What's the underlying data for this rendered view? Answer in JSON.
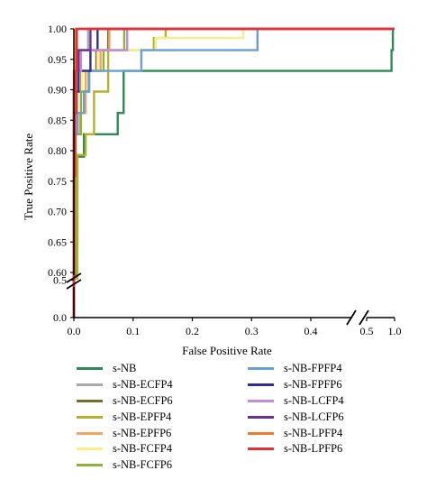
{
  "chart_data": {
    "type": "line",
    "xlabel": "False Positive Rate",
    "ylabel": "True Positive Rate",
    "xlim": [
      0,
      1.0
    ],
    "ylim": [
      0,
      1.0
    ],
    "x_axis_break": [
      0.47,
      0.5
    ],
    "y_axis_break": [
      0.0,
      0.6
    ],
    "x_ticks": [
      "0.0",
      "0.1",
      "0.2",
      "0.3",
      "0.4",
      "0.5",
      "1.0"
    ],
    "y_ticks": [
      "0.0",
      "0.5",
      "0.60",
      "0.65",
      "0.70",
      "0.75",
      "0.80",
      "0.85",
      "0.90",
      "0.95",
      "1.00"
    ],
    "grid": false,
    "legend_placement": "below, two columns",
    "series": [
      {
        "name": "s-NB",
        "color": "#2e8b57",
        "points": [
          [
            0,
            0
          ],
          [
            0,
            0.52
          ],
          [
            0.002,
            0.52
          ],
          [
            0.002,
            0.65
          ],
          [
            0.006,
            0.65
          ],
          [
            0.006,
            0.79
          ],
          [
            0.017,
            0.79
          ],
          [
            0.017,
            0.827
          ],
          [
            0.074,
            0.827
          ],
          [
            0.074,
            0.862
          ],
          [
            0.084,
            0.862
          ],
          [
            0.084,
            0.931
          ],
          [
            0.469,
            0.931
          ],
          [
            0.5,
            0.931
          ],
          [
            0.945,
            0.931
          ],
          [
            0.945,
            0.965
          ],
          [
            0.97,
            0.965
          ],
          [
            0.97,
            1.0
          ],
          [
            1.0,
            1.0
          ]
        ]
      },
      {
        "name": "s-NB-ECFP4",
        "color": "#a9a9a9",
        "points": [
          [
            0,
            0
          ],
          [
            0,
            0.897
          ],
          [
            0.003,
            0.897
          ],
          [
            0.003,
            0.931
          ],
          [
            0.008,
            0.931
          ],
          [
            0.008,
            0.965
          ],
          [
            0.024,
            0.965
          ],
          [
            0.024,
            1.0
          ],
          [
            1.0,
            1.0
          ]
        ]
      },
      {
        "name": "s-NB-ECFP6",
        "color": "#7a6a2c",
        "points": [
          [
            0,
            0
          ],
          [
            0,
            0.862
          ],
          [
            0.005,
            0.862
          ],
          [
            0.005,
            0.897
          ],
          [
            0.013,
            0.897
          ],
          [
            0.013,
            0.931
          ],
          [
            0.038,
            0.931
          ],
          [
            0.038,
            0.965
          ],
          [
            0.058,
            0.965
          ],
          [
            0.058,
            1.0
          ],
          [
            1.0,
            1.0
          ]
        ]
      },
      {
        "name": "s-NB-EPFP4",
        "color": "#b5b02e",
        "points": [
          [
            0,
            0
          ],
          [
            0,
            0.52
          ],
          [
            0.006,
            0.52
          ],
          [
            0.006,
            0.793
          ],
          [
            0.02,
            0.793
          ],
          [
            0.02,
            0.827
          ],
          [
            0.034,
            0.827
          ],
          [
            0.034,
            0.897
          ],
          [
            0.058,
            0.897
          ],
          [
            0.058,
            0.965
          ],
          [
            0.135,
            0.965
          ],
          [
            0.135,
            0.985
          ],
          [
            0.155,
            0.985
          ],
          [
            0.155,
            1.0
          ],
          [
            1.0,
            1.0
          ]
        ]
      },
      {
        "name": "s-NB-EPFP6",
        "color": "#f4a460",
        "points": [
          [
            0,
            0
          ],
          [
            0,
            0.7
          ],
          [
            0.003,
            0.7
          ],
          [
            0.003,
            0.827
          ],
          [
            0.01,
            0.827
          ],
          [
            0.01,
            0.862
          ],
          [
            0.02,
            0.862
          ],
          [
            0.02,
            0.931
          ],
          [
            0.045,
            0.931
          ],
          [
            0.045,
            0.965
          ],
          [
            0.06,
            0.965
          ],
          [
            0.06,
            1.0
          ],
          [
            1.0,
            1.0
          ]
        ]
      },
      {
        "name": "s-NB-FCFP4",
        "color": "#f5f08c",
        "points": [
          [
            0,
            0
          ],
          [
            0,
            0.862
          ],
          [
            0.004,
            0.862
          ],
          [
            0.004,
            0.897
          ],
          [
            0.014,
            0.897
          ],
          [
            0.014,
            0.931
          ],
          [
            0.04,
            0.931
          ],
          [
            0.04,
            0.965
          ],
          [
            0.138,
            0.965
          ],
          [
            0.138,
            0.985
          ],
          [
            0.286,
            0.985
          ],
          [
            0.286,
            1.0
          ],
          [
            1.0,
            1.0
          ]
        ]
      },
      {
        "name": "s-NB-FCFP6",
        "color": "#8db13a",
        "points": [
          [
            0,
            0
          ],
          [
            0,
            0.6
          ],
          [
            0.003,
            0.6
          ],
          [
            0.003,
            0.827
          ],
          [
            0.012,
            0.827
          ],
          [
            0.012,
            0.897
          ],
          [
            0.025,
            0.897
          ],
          [
            0.025,
            0.931
          ],
          [
            0.05,
            0.931
          ],
          [
            0.05,
            0.965
          ],
          [
            0.085,
            0.965
          ],
          [
            0.085,
            1.0
          ],
          [
            1.0,
            1.0
          ]
        ]
      },
      {
        "name": "s-NB-FPFP4",
        "color": "#6a9fd4",
        "points": [
          [
            0,
            0
          ],
          [
            0,
            0.827
          ],
          [
            0.006,
            0.827
          ],
          [
            0.006,
            0.862
          ],
          [
            0.017,
            0.862
          ],
          [
            0.017,
            0.897
          ],
          [
            0.026,
            0.897
          ],
          [
            0.026,
            0.931
          ],
          [
            0.114,
            0.931
          ],
          [
            0.114,
            0.965
          ],
          [
            0.31,
            0.965
          ],
          [
            0.31,
            1.0
          ],
          [
            1.0,
            1.0
          ]
        ]
      },
      {
        "name": "s-NB-FPFP6",
        "color": "#2f2f8f",
        "points": [
          [
            0,
            0
          ],
          [
            0,
            0.897
          ],
          [
            0.008,
            0.897
          ],
          [
            0.008,
            0.931
          ],
          [
            0.028,
            0.931
          ],
          [
            0.028,
            0.965
          ],
          [
            0.04,
            0.965
          ],
          [
            0.04,
            1.0
          ],
          [
            1.0,
            1.0
          ]
        ]
      },
      {
        "name": "s-NB-LCFP4",
        "color": "#c28bd6",
        "points": [
          [
            0,
            0
          ],
          [
            0,
            0.862
          ],
          [
            0.003,
            0.862
          ],
          [
            0.003,
            0.931
          ],
          [
            0.012,
            0.931
          ],
          [
            0.012,
            0.965
          ],
          [
            0.09,
            0.965
          ],
          [
            0.09,
            1.0
          ],
          [
            1.0,
            1.0
          ]
        ]
      },
      {
        "name": "s-NB-LCFP6",
        "color": "#6a2f8f",
        "points": [
          [
            0,
            0
          ],
          [
            0,
            0.897
          ],
          [
            0.002,
            0.897
          ],
          [
            0.002,
            0.931
          ],
          [
            0.008,
            0.931
          ],
          [
            0.008,
            0.965
          ],
          [
            0.028,
            0.965
          ],
          [
            0.028,
            1.0
          ],
          [
            1.0,
            1.0
          ]
        ]
      },
      {
        "name": "s-NB-LPFP4",
        "color": "#f07a2a",
        "points": [
          [
            0,
            0
          ],
          [
            0,
            0.931
          ],
          [
            0.003,
            0.931
          ],
          [
            0.003,
            1.0
          ],
          [
            1.0,
            1.0
          ]
        ]
      },
      {
        "name": "s-NB-LPFP6",
        "color": "#e0303a",
        "points": [
          [
            0,
            0
          ],
          [
            0,
            0.758
          ],
          [
            0.002,
            0.758
          ],
          [
            0.002,
            0.862
          ],
          [
            0.004,
            0.862
          ],
          [
            0.004,
            0.931
          ],
          [
            0.005,
            0.931
          ],
          [
            0.005,
            1.0
          ],
          [
            1.0,
            1.0
          ]
        ]
      }
    ]
  }
}
